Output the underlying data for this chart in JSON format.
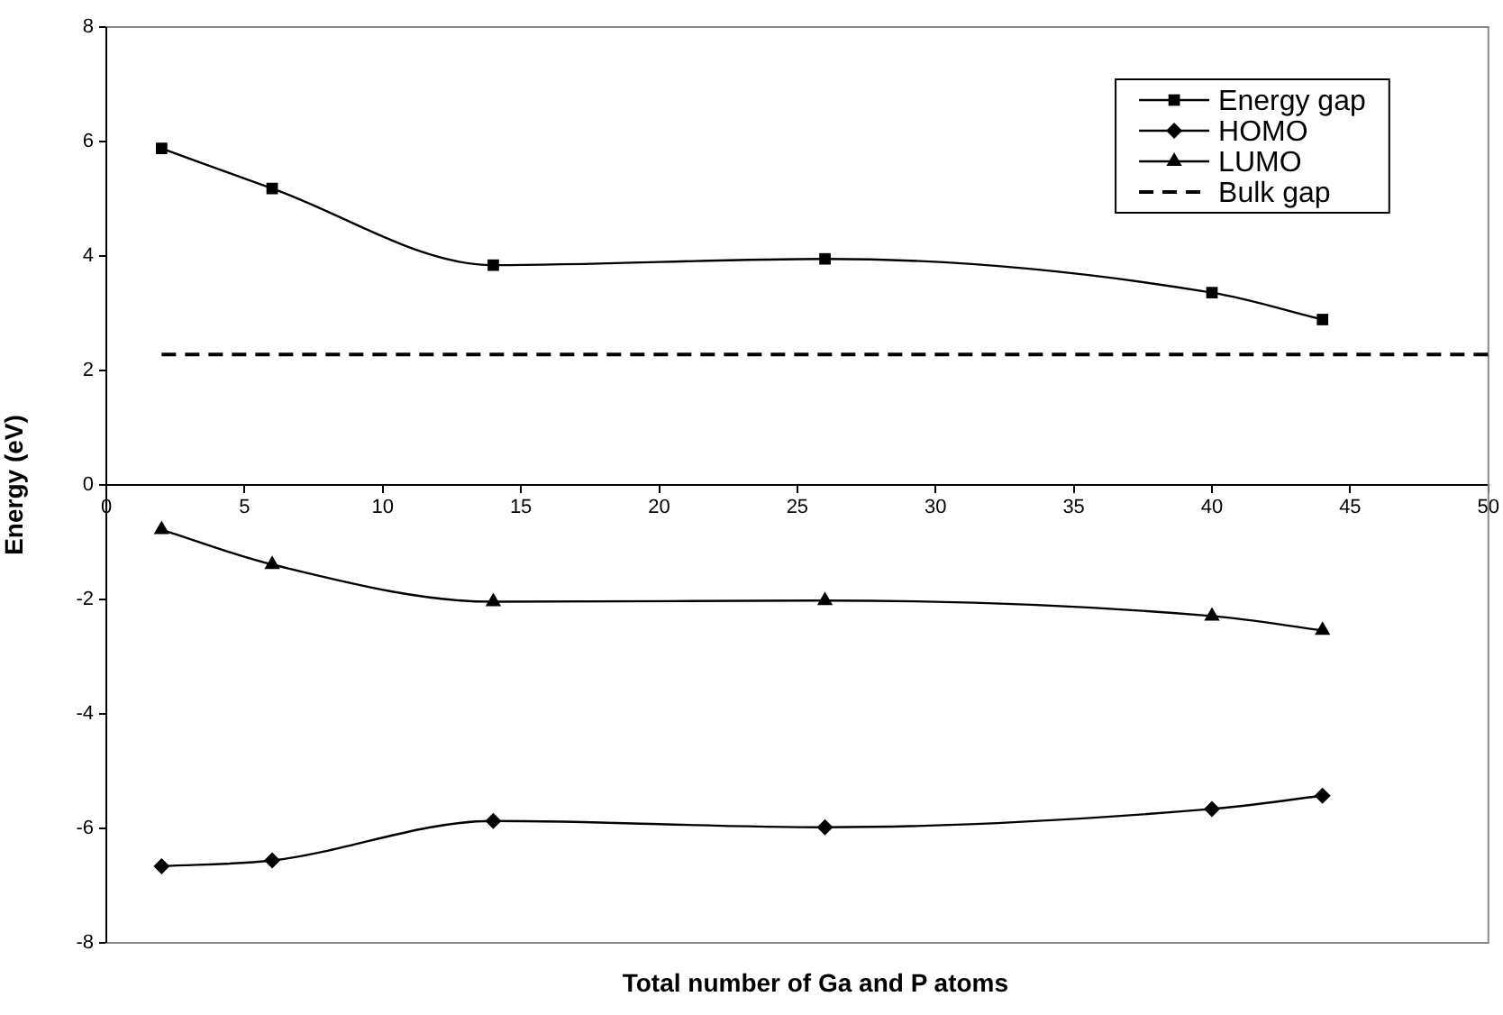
{
  "chart_data": {
    "type": "line",
    "xlabel": "Total number of Ga and P atoms",
    "ylabel": "Energy (eV)",
    "x": [
      2,
      6,
      14,
      26,
      40,
      44
    ],
    "series": [
      {
        "name": "Energy gap",
        "color": "#000000",
        "marker": "square",
        "values": [
          5.88,
          5.18,
          3.84,
          3.95,
          3.36,
          2.89
        ]
      },
      {
        "name": "HOMO",
        "color": "#000000",
        "marker": "diamond",
        "values": [
          -6.66,
          -6.56,
          -5.87,
          -5.98,
          -5.66,
          -5.43
        ]
      },
      {
        "name": "LUMO",
        "color": "#000000",
        "marker": "triangle",
        "values": [
          -0.78,
          -1.39,
          -2.04,
          -2.02,
          -2.29,
          -2.54
        ]
      }
    ],
    "ref_lines": [
      {
        "axis": "y",
        "value": 2.28,
        "label": "Bulk gap",
        "color": "#000000",
        "line_style": "dashed"
      }
    ],
    "xlim": [
      0,
      50
    ],
    "xticks": [
      0,
      5,
      10,
      15,
      20,
      25,
      30,
      35,
      40,
      45,
      50
    ],
    "ylim": [
      -8,
      8
    ],
    "yticks": [
      -8,
      -6,
      -4,
      -2,
      0,
      2,
      4,
      6,
      8
    ],
    "grid": false,
    "legend": "top right",
    "line_style": "solid"
  }
}
